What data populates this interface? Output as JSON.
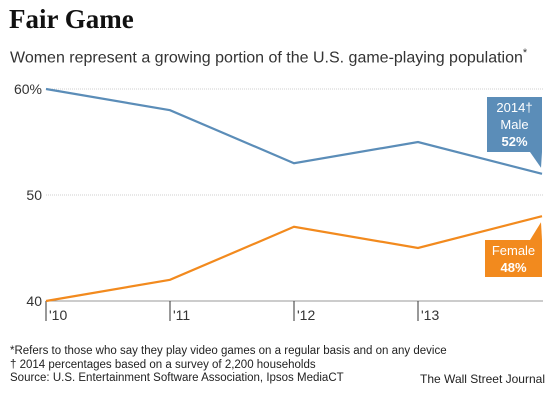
{
  "header": {
    "title": "Fair Game",
    "subtitle": "Women represent a growing portion of the U.S. game-playing population",
    "subtitle_mark": "*"
  },
  "chart_data": {
    "type": "line",
    "title": "Fair Game",
    "subtitle": "Women represent a growing portion of the U.S. game-playing population*",
    "xlabel": "",
    "ylabel": "",
    "x": [
      2010,
      2011,
      2012,
      2013,
      2014
    ],
    "x_tick_labels": [
      "'10",
      "'11",
      "'12",
      "'13"
    ],
    "y_tick_labels": [
      "60%",
      "50",
      "40"
    ],
    "y_ticks": [
      60,
      50,
      40
    ],
    "ylim": [
      40,
      60
    ],
    "grid": true,
    "series": [
      {
        "name": "Male",
        "color": "#5b8db8",
        "values": [
          60,
          58,
          53,
          55,
          52
        ],
        "callout": {
          "year_label": "2014†",
          "name": "Male",
          "value_label": "52%"
        }
      },
      {
        "name": "Female",
        "color": "#f28a1e",
        "values": [
          40,
          42,
          47,
          45,
          48
        ],
        "callout": {
          "name": "Female",
          "value_label": "48%"
        }
      }
    ]
  },
  "footer": {
    "notes": [
      "*Refers to those who say they play video games on a regular basis and on any device",
      "† 2014 percentages based on a survey of 2,200 households",
      "Source: U.S. Entertainment Software Association, Ipsos MediaCT"
    ],
    "credit": "The Wall Street Journal"
  }
}
